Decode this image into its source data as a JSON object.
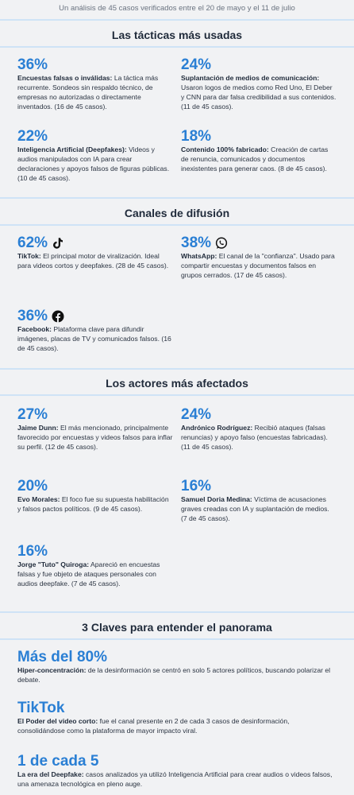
{
  "header": {
    "subtitle": "Un análisis de 45 casos verificados entre el 20 de mayo y el 11 de julio"
  },
  "sections": [
    {
      "title": "Las tácticas más usadas",
      "items": [
        {
          "figure": "36%",
          "lead": "Encuestas falsas o inválidas:",
          "text": "La táctica más recurrente. Sondeos sin respaldo técnico, de empresas no autorizadas o directamente inventados. (16 de 45 casos)."
        },
        {
          "figure": "24%",
          "lead": "Suplantación de medios de comunicación:",
          "text": "Usaron logos de medios como Red Uno, El Deber y CNN para dar falsa credibilidad a sus contenidos. (11 de 45 casos)."
        },
        {
          "figure": "22%",
          "lead": "Inteligencia Artificial (Deepfakes):",
          "text": "Videos y audios manipulados con IA para crear declaraciones y apoyos falsos de figuras públicas. (10 de 45 casos)."
        },
        {
          "figure": "18%",
          "lead": "Contenido 100% fabricado:",
          "text": "Creación de cartas de renuncia, comunicados y documentos inexistentes para generar caos. (8 de 45 casos)."
        }
      ]
    },
    {
      "title": "Canales de difusión",
      "items": [
        {
          "figure": "62%",
          "lead": "TikTok:",
          "text": "El principal motor de viralización. Ideal para videos cortos y deepfakes. (28 de 45 casos)."
        },
        {
          "figure": "38%",
          "lead": "WhatsApp:",
          "text": "El canal de la \"confianza\". Usado para compartir encuestas y documentos falsos en grupos cerrados. (17 de 45 casos)."
        },
        {
          "figure": "36%",
          "lead": "Facebook:",
          "text": "Plataforma clave para difundir imágenes, placas de TV y comunicados falsos. (16 de 45 casos)."
        }
      ]
    },
    {
      "title": "Los actores más afectados",
      "items": [
        {
          "figure": "27%",
          "lead": "Jaime Dunn:",
          "text": "El más mencionado, principalmente favorecido por encuestas y videos falsos para inflar su perfil. (12 de 45 casos)."
        },
        {
          "figure": "24%",
          "lead": "Andrónico Rodríguez:",
          "text": "Recibió ataques (falsas renuncias) y apoyo falso (encuestas fabricadas). (11 de 45 casos)."
        },
        {
          "figure": "20%",
          "lead": "Evo Morales:",
          "text": "El foco fue su supuesta habilitación y falsos pactos políticos. (9 de 45 casos)."
        },
        {
          "figure": "16%",
          "lead": "Samuel Doria Medina:",
          "text": "Víctima de acusaciones graves creadas con IA y suplantación de medios. (7 de 45 casos)."
        },
        {
          "figure": "16%",
          "lead": "Jorge \"Tuto\" Quiroga:",
          "text": "Apareció en encuestas falsas y fue objeto de ataques personales con audios deepfake. (7 de 45 casos)."
        }
      ]
    },
    {
      "title": "3 Claves para entender el panorama",
      "items": [
        {
          "figure": "Más del 80%",
          "lead": "Hiper-concentración:",
          "text": "de la desinformación se centró en solo 5 actores políticos, buscando polarizar el debate."
        },
        {
          "figure": "TikTok",
          "lead": "El Poder del video corto:",
          "text": "fue el canal presente en 2 de cada 3 casos de desinformación, consolidándose como la plataforma de mayor impacto viral."
        },
        {
          "figure": "1 de cada 5",
          "lead": "La era del Deepfake:",
          "text": "casos analizados ya utilizó Inteligencia Artificial para crear audios o videos falsos, una amenaza tecnológica en pleno auge."
        }
      ]
    }
  ]
}
